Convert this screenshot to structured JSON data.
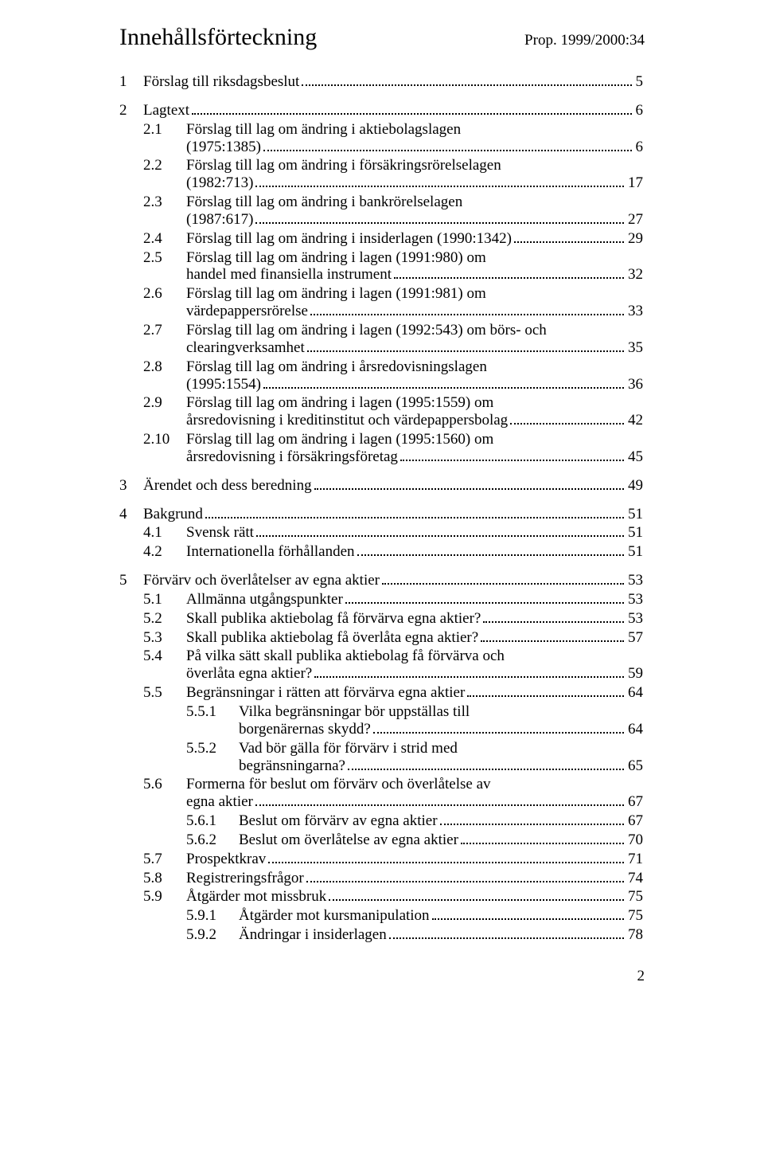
{
  "header": {
    "title": "Innehållsförteckning",
    "prop": "Prop. 1999/2000:34"
  },
  "toc": [
    {
      "lvl": 1,
      "num": "1",
      "label": "Förslag till riksdagsbeslut",
      "page": "5",
      "top": true
    },
    {
      "lvl": 1,
      "num": "2",
      "label": "Lagtext",
      "page": "6",
      "top": true
    },
    {
      "lvl": 2,
      "num": "2.1",
      "lines": [
        "Förslag till lag om ändring i aktiebolagslagen"
      ],
      "last": "(1975:1385)",
      "page": "6"
    },
    {
      "lvl": 2,
      "num": "2.2",
      "lines": [
        "Förslag till lag om ändring i försäkringsrörelselagen"
      ],
      "last": "(1982:713)",
      "page": "17"
    },
    {
      "lvl": 2,
      "num": "2.3",
      "lines": [
        "Förslag till lag om ändring i bankrörelselagen"
      ],
      "last": "(1987:617)",
      "page": "27"
    },
    {
      "lvl": 2,
      "num": "2.4",
      "label": "Förslag till lag om ändring i insiderlagen (1990:1342)",
      "page": "29"
    },
    {
      "lvl": 2,
      "num": "2.5",
      "lines": [
        "Förslag till lag om ändring i lagen (1991:980) om"
      ],
      "last": "handel med finansiella instrument",
      "page": "32"
    },
    {
      "lvl": 2,
      "num": "2.6",
      "lines": [
        "Förslag till lag om ändring i lagen (1991:981) om"
      ],
      "last": "värdepappersrörelse",
      "page": "33"
    },
    {
      "lvl": 2,
      "num": "2.7",
      "lines": [
        "Förslag till lag om ändring i lagen (1992:543) om börs- och"
      ],
      "last": "clearingverksamhet",
      "page": "35"
    },
    {
      "lvl": 2,
      "num": "2.8",
      "lines": [
        "Förslag till lag om ändring i årsredovisningslagen"
      ],
      "last": "(1995:1554)",
      "page": "36"
    },
    {
      "lvl": 2,
      "num": "2.9",
      "lines": [
        "Förslag till lag om ändring i lagen (1995:1559) om"
      ],
      "last": "årsredovisning i kreditinstitut och värdepappersbolag",
      "page": "42"
    },
    {
      "lvl": 2,
      "num": "2.10",
      "lines": [
        "Förslag till lag om ändring i lagen (1995:1560) om"
      ],
      "last": "årsredovisning i försäkringsföretag",
      "page": "45"
    },
    {
      "lvl": 1,
      "num": "3",
      "label": "Ärendet och dess beredning",
      "page": "49",
      "top": true
    },
    {
      "lvl": 1,
      "num": "4",
      "label": "Bakgrund",
      "page": "51",
      "top": true
    },
    {
      "lvl": 2,
      "num": "4.1",
      "label": "Svensk rätt",
      "page": "51"
    },
    {
      "lvl": 2,
      "num": "4.2",
      "label": "Internationella förhållanden",
      "page": "51"
    },
    {
      "lvl": 1,
      "num": "5",
      "label": "Förvärv och överlåtelser av egna aktier",
      "page": "53",
      "top": true
    },
    {
      "lvl": 2,
      "num": "5.1",
      "label": "Allmänna utgångspunkter",
      "page": "53"
    },
    {
      "lvl": 2,
      "num": "5.2",
      "label": "Skall publika aktiebolag få förvärva egna aktier?",
      "page": "53"
    },
    {
      "lvl": 2,
      "num": "5.3",
      "label": "Skall publika aktiebolag få överlåta egna aktier?",
      "page": "57"
    },
    {
      "lvl": 2,
      "num": "5.4",
      "lines": [
        "På vilka sätt skall publika aktiebolag få förvärva och"
      ],
      "last": "överlåta egna aktier?",
      "page": "59"
    },
    {
      "lvl": 2,
      "num": "5.5",
      "label": "Begränsningar i rätten att förvärva egna aktier",
      "page": "64"
    },
    {
      "lvl": 3,
      "num": "5.5.1",
      "lines": [
        "Vilka begränsningar bör uppställas till"
      ],
      "last": "borgenärernas skydd?",
      "page": "64"
    },
    {
      "lvl": 3,
      "num": "5.5.2",
      "lines": [
        "Vad bör gälla för förvärv i strid med"
      ],
      "last": "begränsningarna?",
      "page": "65"
    },
    {
      "lvl": 2,
      "num": "5.6",
      "lines": [
        "Formerna för beslut om förvärv och överlåtelse av"
      ],
      "last": "egna aktier",
      "page": "67"
    },
    {
      "lvl": 3,
      "num": "5.6.1",
      "label": "Beslut om förvärv av egna aktier",
      "page": "67"
    },
    {
      "lvl": 3,
      "num": "5.6.2",
      "label": "Beslut om överlåtelse av egna aktier",
      "page": "70"
    },
    {
      "lvl": 2,
      "num": "5.7",
      "label": "Prospektkrav",
      "page": "71"
    },
    {
      "lvl": 2,
      "num": "5.8",
      "label": "Registreringsfrågor",
      "page": "74"
    },
    {
      "lvl": 2,
      "num": "5.9",
      "label": "Åtgärder mot missbruk",
      "page": "75"
    },
    {
      "lvl": 3,
      "num": "5.9.1",
      "label": "Åtgärder mot kursmanipulation",
      "page": "75"
    },
    {
      "lvl": 3,
      "num": "5.9.2",
      "label": "Ändringar i insiderlagen",
      "page": "78"
    }
  ],
  "footer": {
    "page": "2"
  }
}
